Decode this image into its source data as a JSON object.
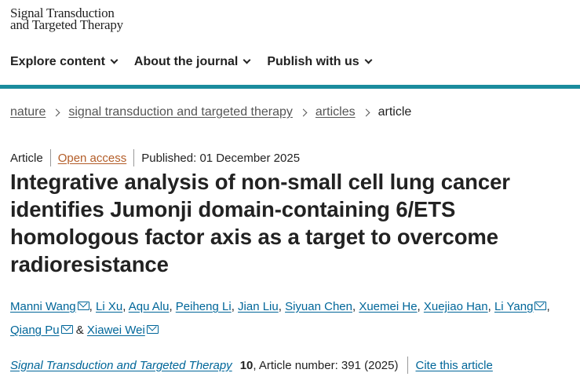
{
  "logo": {
    "line1": "Signal Transduction",
    "line2": "and Targeted Therapy"
  },
  "nav": {
    "items": [
      {
        "label": "Explore content"
      },
      {
        "label": "About the journal"
      },
      {
        "label": "Publish with us"
      }
    ]
  },
  "breadcrumb": {
    "items": [
      "nature",
      "signal transduction and targeted therapy",
      "articles"
    ],
    "current": "article"
  },
  "meta": {
    "type": "Article",
    "access": "Open access",
    "published": "Published: 01 December 2025"
  },
  "title": "Integrative analysis of non-small cell lung cancer identifies Jumonji domain-containing 6/ETS homologous factor axis as a target to overcome radioresistance",
  "authors": [
    {
      "name": "Manni Wang",
      "email": true
    },
    {
      "name": "Li Xu",
      "email": false
    },
    {
      "name": "Aqu Alu",
      "email": false
    },
    {
      "name": "Peiheng Li",
      "email": false
    },
    {
      "name": "Jian Liu",
      "email": false
    },
    {
      "name": "Siyuan Chen",
      "email": false
    },
    {
      "name": "Xuemei He",
      "email": false
    },
    {
      "name": "Xuejiao Han",
      "email": false
    },
    {
      "name": "Li Yang",
      "email": true
    },
    {
      "name": "Qiang Pu",
      "email": true
    },
    {
      "name": "Xiawei Wei",
      "email": true
    }
  ],
  "citation": {
    "journal": "Signal Transduction and Targeted Therapy",
    "volume": "10",
    "article_number": ", Article number: 391 (2025)",
    "cite_label": "Cite this article"
  },
  "colors": {
    "accent_bar": "#1a8c9d",
    "link": "#006699",
    "open_access": "#b35d28"
  }
}
